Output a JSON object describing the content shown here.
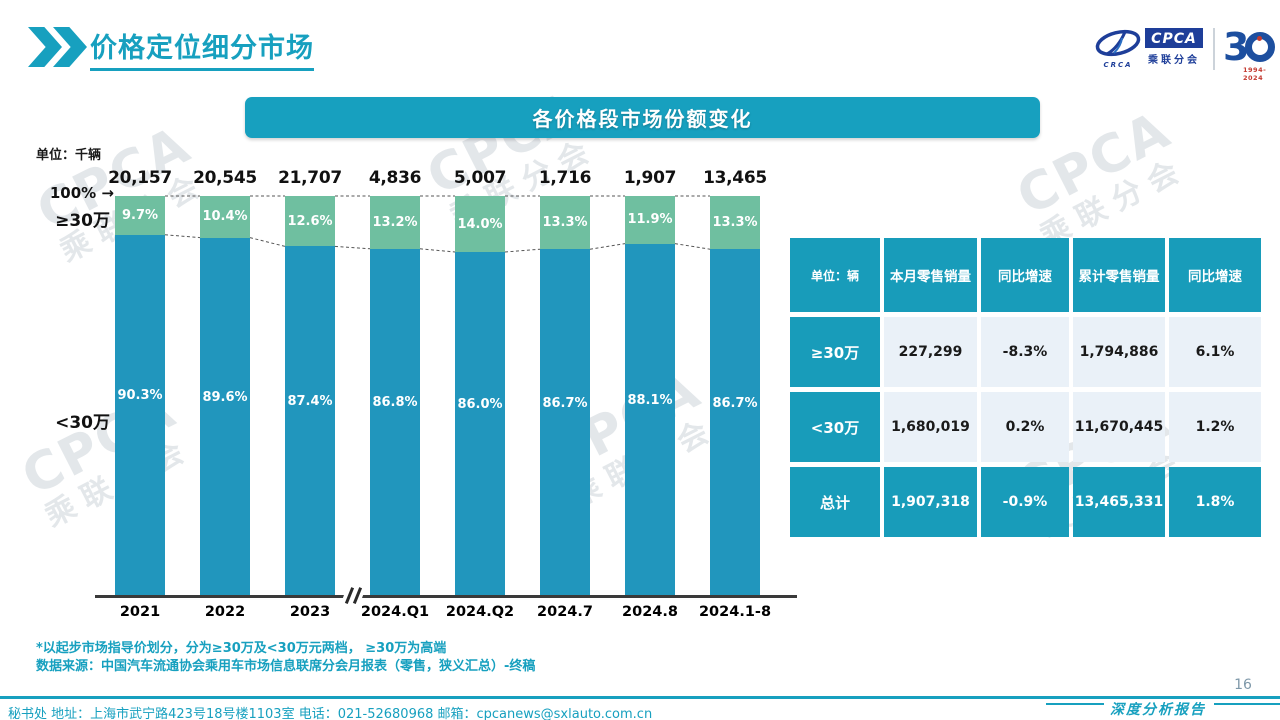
{
  "header": {
    "title": "价格定位细分市场",
    "logo": {
      "crca": "CRCA",
      "cpca": "CPCA",
      "cpca_sub": "乘联分会",
      "thirty_digit": "3",
      "years": "1994-2024"
    }
  },
  "banner": {
    "title": "各价格段市场份额变化"
  },
  "branding": {
    "watermark_en": "CPCA",
    "watermark_cn": "乘联分会"
  },
  "chart_data": {
    "type": "bar",
    "stacked": true,
    "title": "各价格段市场份额变化",
    "unit_label": "单位：千辆",
    "axis_top_label": "100%",
    "axis_arrow": "→",
    "upper_segment_label": "≥30万",
    "lower_segment_label": "<30万",
    "ylim": [
      0,
      100
    ],
    "grid": false,
    "axis_break_between": [
      "2023",
      "2024.Q1"
    ],
    "categories": [
      "2021",
      "2022",
      "2023",
      "2024.Q1",
      "2024.Q2",
      "2024.7",
      "2024.8",
      "2024.1-8"
    ],
    "totals": [
      "20,157",
      "20,545",
      "21,707",
      "4,836",
      "5,007",
      "1,716",
      "1,907",
      "13,465"
    ],
    "series": [
      {
        "name": "≥30万",
        "color": "#6FBFA0",
        "values": [
          9.7,
          10.4,
          12.6,
          13.2,
          14.0,
          13.3,
          11.9,
          13.3
        ],
        "labels": [
          "9.7%",
          "10.4%",
          "12.6%",
          "13.2%",
          "14.0%",
          "13.3%",
          "11.9%",
          "13.3%"
        ]
      },
      {
        "name": "<30万",
        "color": "#2196BD",
        "values": [
          90.3,
          89.6,
          87.4,
          86.8,
          86.0,
          86.7,
          88.1,
          86.7
        ],
        "labels": [
          "90.3%",
          "89.6%",
          "87.4%",
          "86.8%",
          "86.0%",
          "86.7%",
          "88.1%",
          "86.7%"
        ]
      }
    ]
  },
  "table": {
    "headers": [
      "单位：辆",
      "本月零售销量",
      "同比增速",
      "累计零售销量",
      "同比增速"
    ],
    "rows": [
      {
        "label": "≥30万",
        "cells": [
          "227,299",
          "-8.3%",
          "1,794,886",
          "6.1%"
        ],
        "total": false
      },
      {
        "label": "<30万",
        "cells": [
          "1,680,019",
          "0.2%",
          "11,670,445",
          "1.2%"
        ],
        "total": false
      },
      {
        "label": "总计",
        "cells": [
          "1,907,318",
          "-0.9%",
          "13,465,331",
          "1.8%"
        ],
        "total": true
      }
    ]
  },
  "footnotes": [
    "*以起步市场指导价划分，分为≥30万及<30万元两档， ≥30万为高端",
    "数据来源：中国汽车流通协会乘用车市场信息联席分会月报表（零售，狭义汇总）-终稿"
  ],
  "footer": {
    "contact": "秘书处  地址：上海市武宁路423号18号楼1103室 电话：021-52680968  邮箱：cpcanews@sxlauto.com.cn",
    "report_label": "深度分析报告",
    "page_number": "16"
  },
  "colors": {
    "accent_teal": "#17A0BF",
    "bar_blue": "#2196BD",
    "bar_green": "#6FBFA0",
    "table_teal": "#189CBA",
    "table_light_cell": "#EAF1F8",
    "logo_navy": "#1E3E99",
    "page_number_gray": "#7E98A9"
  }
}
